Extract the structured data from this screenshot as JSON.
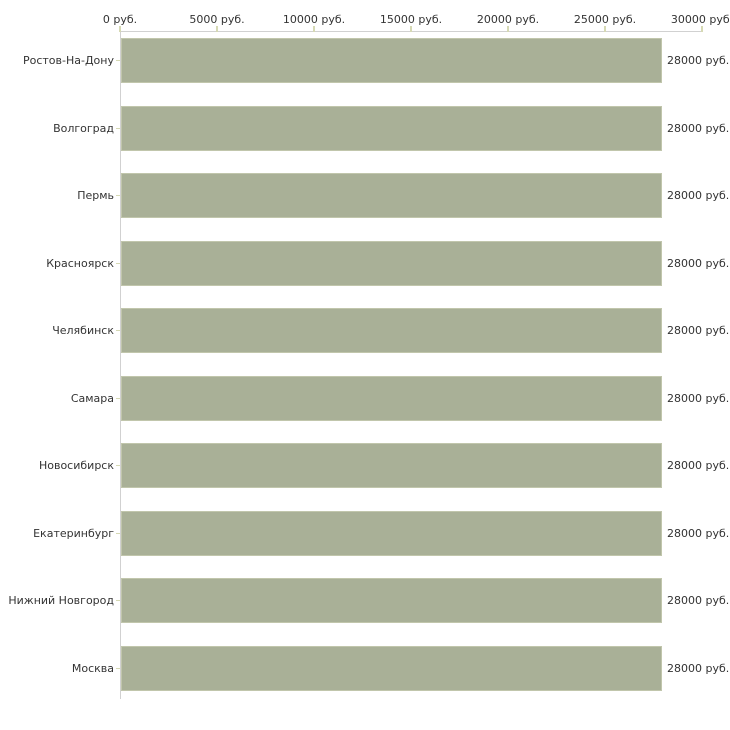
{
  "chart_data": {
    "type": "bar",
    "orientation": "horizontal",
    "title": "",
    "xlabel": "",
    "ylabel": "",
    "categories": [
      "Ростов-На-Дону",
      "Волгоград",
      "Пермь",
      "Красноярск",
      "Челябинск",
      "Самара",
      "Новосибирск",
      "Екатеринбург",
      "Нижний Новгород",
      "Москва"
    ],
    "values": [
      28000,
      28000,
      28000,
      28000,
      28000,
      28000,
      28000,
      28000,
      28000,
      28000
    ],
    "value_labels": [
      "28000 руб.",
      "28000 руб.",
      "28000 руб.",
      "28000 руб.",
      "28000 руб.",
      "28000 руб.",
      "28000 руб.",
      "28000 руб.",
      "28000 руб.",
      "28000 руб."
    ],
    "unit": "руб.",
    "xlim": [
      0,
      30000
    ],
    "x_ticks": [
      0,
      5000,
      10000,
      15000,
      20000,
      25000,
      30000
    ],
    "x_tick_labels": [
      "0 руб.",
      "5000 руб.",
      "10000 руб.",
      "15000 руб.",
      "20000 руб.",
      "25000 руб.",
      "30000 руб."
    ],
    "grid": false,
    "legend_position": "none",
    "axis_position": "top",
    "colors": {
      "bar_fill": "#a9b097",
      "bar_border": "#c1c6ac",
      "axis_line": "#d1d1d1",
      "tick_mark": "#d6d9b4",
      "text": "#333333",
      "background": "#ffffff"
    }
  }
}
